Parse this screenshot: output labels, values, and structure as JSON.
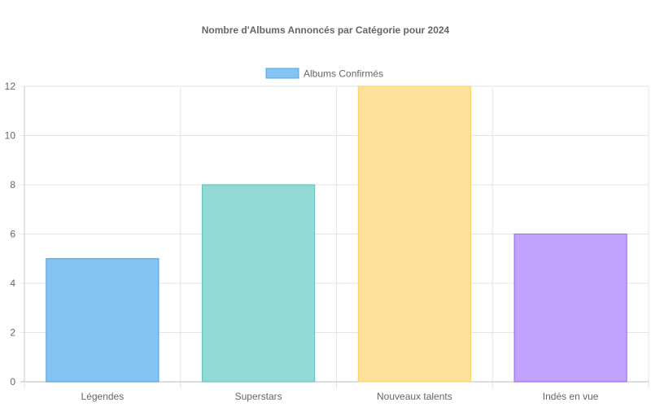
{
  "chart_data": {
    "type": "bar",
    "title": "Nombre d'Albums Annoncés par Catégorie pour 2024",
    "categories": [
      "Légendes",
      "Superstars",
      "Nouveaux talents",
      "Indés en vue"
    ],
    "series": [
      {
        "name": "Albums Confirmés",
        "values": [
          5,
          8,
          12,
          6
        ]
      }
    ],
    "bar_colors": [
      {
        "fill": "#85c4f2",
        "stroke": "#52a8e6"
      },
      {
        "fill": "#93d9d6",
        "stroke": "#63c7c2"
      },
      {
        "fill": "#fde19a",
        "stroke": "#fcd46a"
      },
      {
        "fill": "#c1a2fd",
        "stroke": "#9f72f5"
      }
    ],
    "legend_color": {
      "fill": "#85c4f2",
      "stroke": "#52a8e6"
    },
    "ylim": [
      0,
      12
    ],
    "y_ticks": [
      0,
      2,
      4,
      6,
      8,
      10,
      12
    ],
    "grid": true,
    "legend_position": "top-center",
    "xlabel": "",
    "ylabel": ""
  }
}
